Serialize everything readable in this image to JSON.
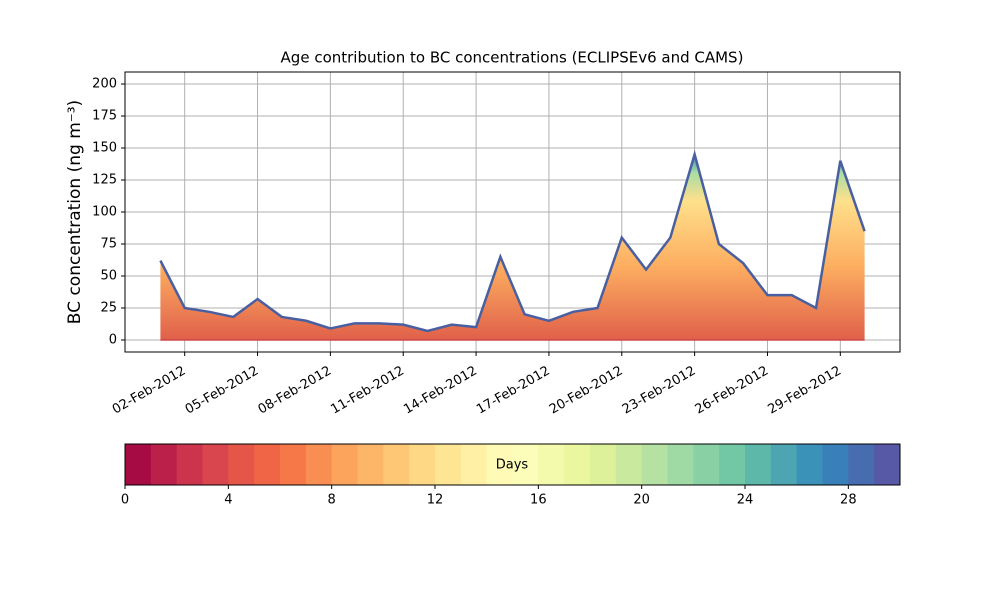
{
  "chart_data": {
    "type": "area",
    "title": "Age contribution to BC concentrations (ECLIPSEv6 and CAMS)",
    "y_label": "BC concentration (ng m⁻³)",
    "x": [
      "2012-02-01",
      "2012-02-02",
      "2012-02-03",
      "2012-02-04",
      "2012-02-05",
      "2012-02-06",
      "2012-02-07",
      "2012-02-08",
      "2012-02-09",
      "2012-02-10",
      "2012-02-11",
      "2012-02-12",
      "2012-02-13",
      "2012-02-14",
      "2012-02-15",
      "2012-02-16",
      "2012-02-17",
      "2012-02-18",
      "2012-02-19",
      "2012-02-20",
      "2012-02-21",
      "2012-02-22",
      "2012-02-23",
      "2012-02-24",
      "2012-02-25",
      "2012-02-26",
      "2012-02-27",
      "2012-02-28",
      "2012-02-29",
      "2012-03-01"
    ],
    "series": [
      {
        "values": [
          62,
          25,
          22,
          18,
          32,
          18,
          15,
          9,
          13,
          13,
          12,
          7,
          12,
          10,
          65,
          20,
          15,
          22,
          25,
          80,
          55,
          80,
          145,
          75,
          60,
          35,
          35,
          25,
          140,
          85
        ]
      }
    ],
    "xlim": [
      "2012-01-30T13:00",
      "2012-03-02T11:00"
    ],
    "xticks": [
      {
        "value": "2012-02-02",
        "label": "02-Feb-2012"
      },
      {
        "value": "2012-02-05",
        "label": "05-Feb-2012"
      },
      {
        "value": "2012-02-08",
        "label": "08-Feb-2012"
      },
      {
        "value": "2012-02-11",
        "label": "11-Feb-2012"
      },
      {
        "value": "2012-02-14",
        "label": "14-Feb-2012"
      },
      {
        "value": "2012-02-17",
        "label": "17-Feb-2012"
      },
      {
        "value": "2012-02-20",
        "label": "20-Feb-2012"
      },
      {
        "value": "2012-02-23",
        "label": "23-Feb-2012"
      },
      {
        "value": "2012-02-26",
        "label": "26-Feb-2012"
      },
      {
        "value": "2012-02-29",
        "label": "29-Feb-2012"
      }
    ],
    "ylim": [
      -9.4,
      209.4
    ],
    "yticks": [
      0,
      25,
      50,
      75,
      100,
      125,
      150,
      175,
      200
    ],
    "grid": true,
    "line_color": "#4a5fa0",
    "colorbar": {
      "label": "Days",
      "lim": [
        0,
        30
      ],
      "bins": 30,
      "ticks": [
        0,
        4,
        8,
        12,
        16,
        20,
        24,
        28
      ],
      "colormap": [
        "#9e0142",
        "#d53e4f",
        "#f46d43",
        "#fdae61",
        "#fee08b",
        "#ffffbf",
        "#e6f598",
        "#abdda4",
        "#66c2a5",
        "#3288bd",
        "#5e4fa2"
      ]
    }
  }
}
